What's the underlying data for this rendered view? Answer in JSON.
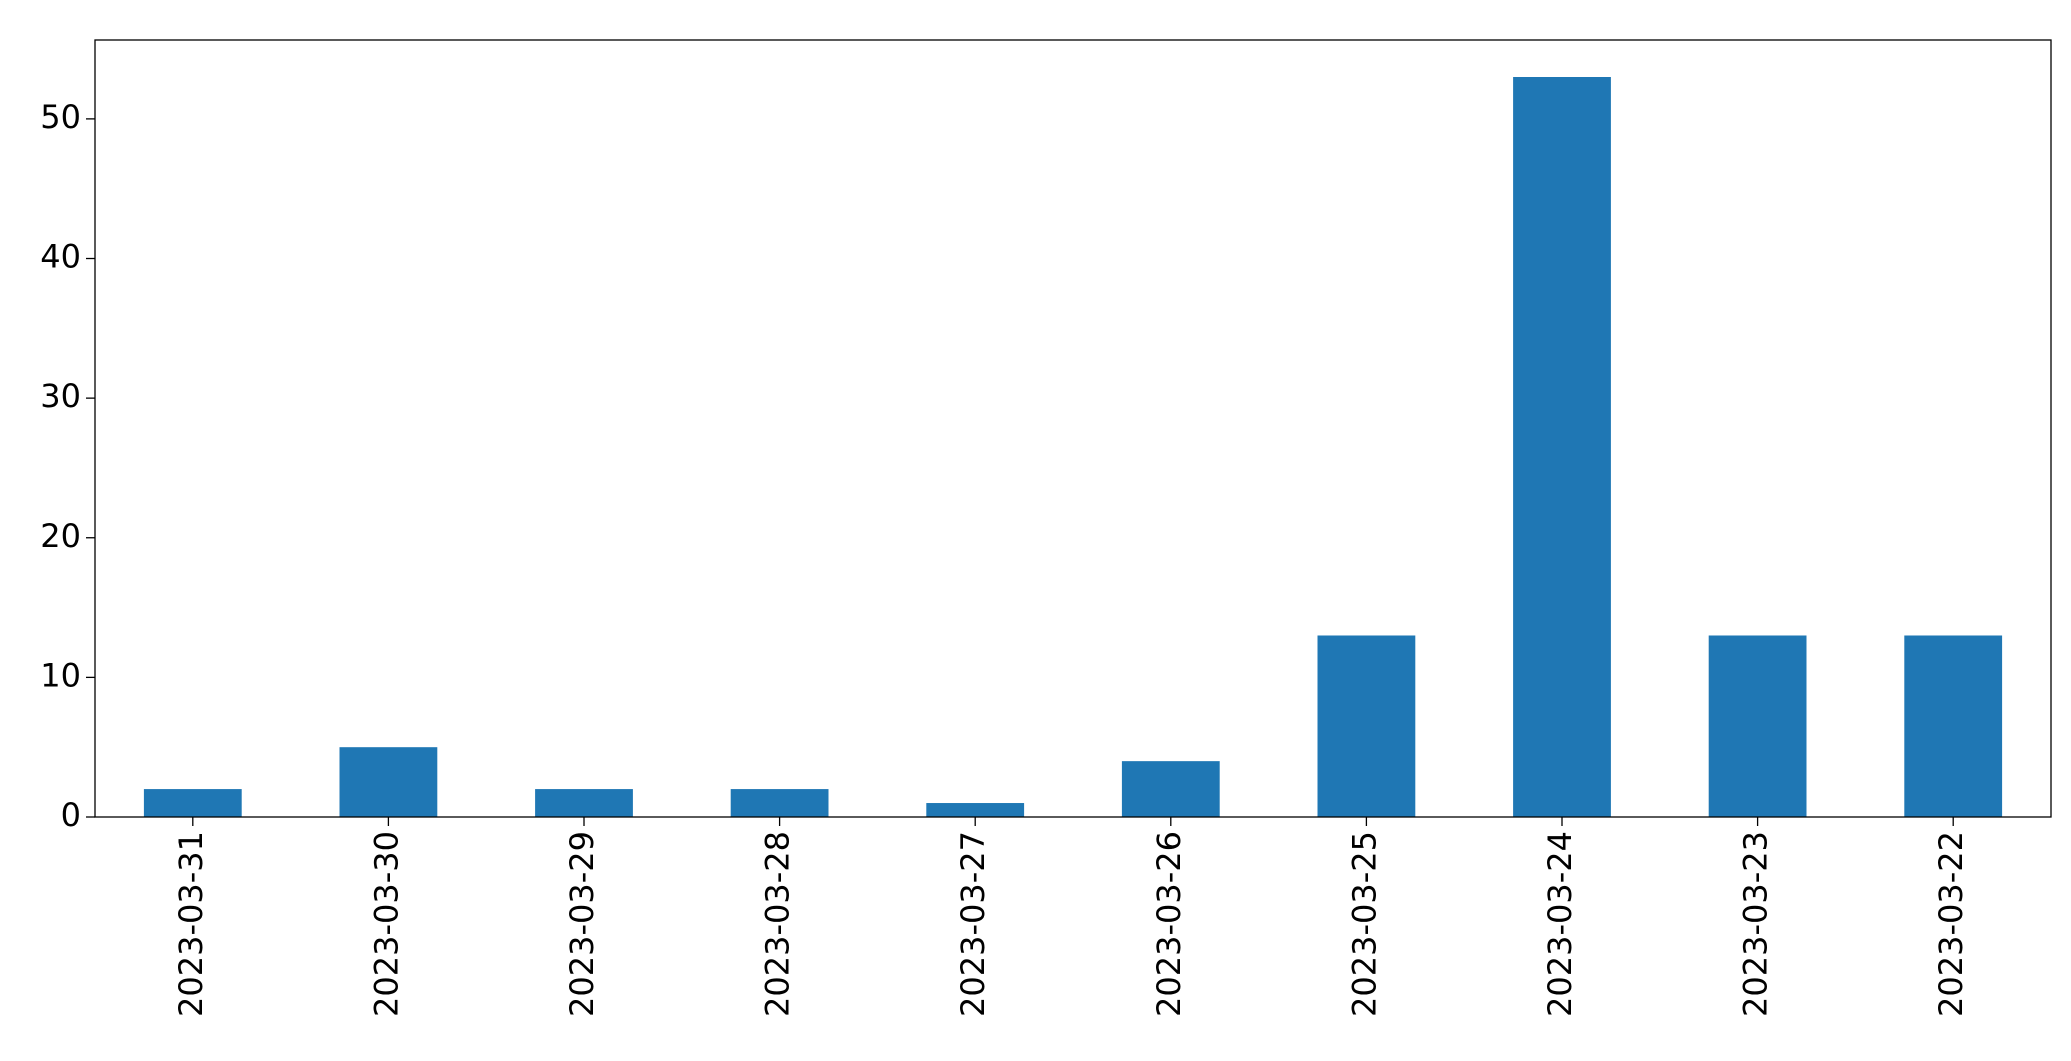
{
  "chart_data": {
    "type": "bar",
    "categories": [
      "2023-03-31",
      "2023-03-30",
      "2023-03-29",
      "2023-03-28",
      "2023-03-27",
      "2023-03-26",
      "2023-03-25",
      "2023-03-24",
      "2023-03-23",
      "2023-03-22"
    ],
    "values": [
      2,
      5,
      2,
      2,
      1,
      4,
      13,
      53,
      13,
      13
    ],
    "color": "#1f77b4",
    "ylim": [
      0,
      55.65
    ],
    "yticks": [
      0,
      10,
      20,
      30,
      40,
      50
    ],
    "grid": false
  }
}
